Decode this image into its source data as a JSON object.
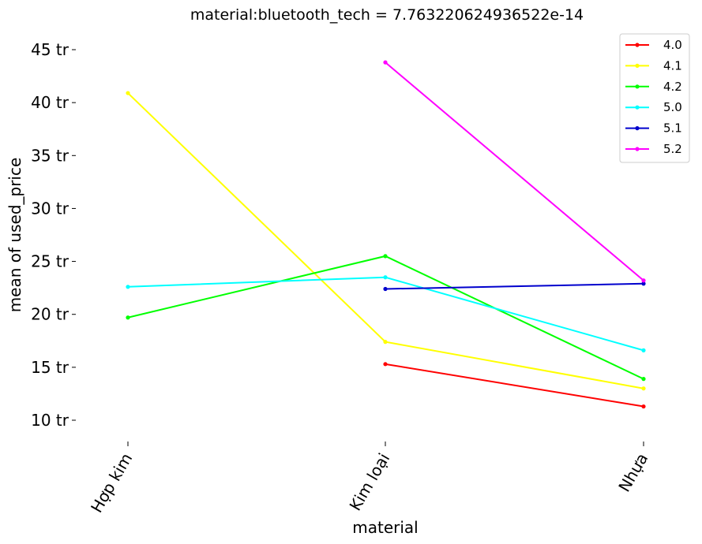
{
  "chart_data": {
    "type": "line",
    "title": "material:bluetooth_tech = 7.763220624936522e-14",
    "xlabel": "material",
    "ylabel": "mean of used_price",
    "categories": [
      "Hợp kim",
      "Kim loại",
      "Nhựa"
    ],
    "ylim": [
      8,
      47
    ],
    "yticks": [
      10,
      15,
      20,
      25,
      30,
      35,
      40,
      45
    ],
    "ytick_labels": [
      "10 tr",
      "15 tr",
      "20 tr",
      "25 tr",
      "30 tr",
      "35 tr",
      "40 tr",
      "45 tr"
    ],
    "legend_position": "top-right",
    "grid": false,
    "series": [
      {
        "name": "4.0",
        "color": "#ff0000",
        "values": [
          null,
          15.3,
          11.3
        ]
      },
      {
        "name": "4.1",
        "color": "#ffff00",
        "values": [
          40.9,
          17.4,
          13.0
        ]
      },
      {
        "name": "4.2",
        "color": "#00ff00",
        "values": [
          19.7,
          25.5,
          13.9
        ]
      },
      {
        "name": "5.0",
        "color": "#00ffff",
        "values": [
          22.6,
          23.5,
          16.6
        ]
      },
      {
        "name": "5.1",
        "color": "#0000cd",
        "values": [
          null,
          22.4,
          22.9
        ]
      },
      {
        "name": "5.2",
        "color": "#ff00ff",
        "values": [
          null,
          43.8,
          23.2
        ]
      }
    ]
  }
}
